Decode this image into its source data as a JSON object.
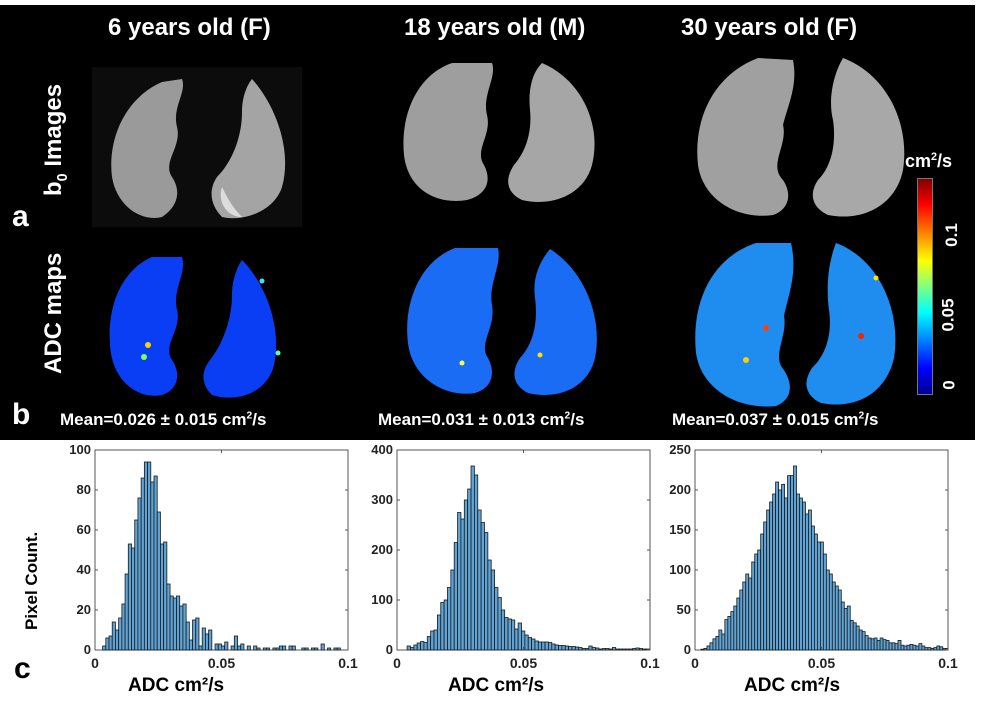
{
  "figure": {
    "panel_letters": [
      "a",
      "b",
      "c"
    ],
    "columns": [
      {
        "title": "6 years old (F)",
        "mean_label": "Mean=0.026 ± 0.015 cm",
        "mean_unit_sup": "2",
        "mean_unit_tail": "/s"
      },
      {
        "title": "18 years old (M)",
        "mean_label": "Mean=0.031 ± 0.013 cm",
        "mean_unit_sup": "2",
        "mean_unit_tail": "/s"
      },
      {
        "title": "30 years old (F)",
        "mean_label": "Mean=0.037 ± 0.015 cm",
        "mean_unit_sup": "2",
        "mean_unit_tail": "/s"
      }
    ],
    "row_labels": {
      "b0_main": "b",
      "b0_sub": "0",
      "b0_tail": " Images",
      "adc": "ADC maps"
    },
    "colorbar": {
      "unit_main": "cm",
      "unit_sup": "2",
      "unit_tail": "/s",
      "ticks": [
        "0",
        "0.05",
        "0.1"
      ],
      "colormap": "jet",
      "range": [
        0,
        0.135
      ]
    },
    "image_descriptions": {
      "b0": "grayscale lung MRI coronal slices",
      "adc": "jet-colored ADC maps of lungs"
    }
  },
  "chart_data": [
    {
      "type": "bar",
      "title": "6 years old (F)",
      "xlabel": "ADC cm²/s",
      "ylabel": "Pixel Count.",
      "xlim": [
        0,
        0.1
      ],
      "ylim": [
        0,
        100
      ],
      "xticks": [
        "0",
        "0.05",
        "0.1"
      ],
      "yticks": [
        "0",
        "20",
        "40",
        "60",
        "80",
        "100"
      ],
      "bin_start": 0.003,
      "bin_width": 0.00127,
      "values": [
        2,
        6,
        7,
        14,
        10,
        16,
        23,
        38,
        53,
        51,
        65,
        76,
        86,
        94,
        94,
        84,
        87,
        69,
        53,
        54,
        33,
        27,
        26,
        27,
        22,
        23,
        14,
        5,
        15,
        16,
        2,
        11,
        8,
        10,
        0,
        3,
        3,
        2,
        4,
        0,
        2,
        7,
        2,
        3,
        0,
        2,
        0,
        2,
        1,
        0,
        1,
        1,
        0,
        1,
        1,
        2,
        2,
        0,
        2,
        2,
        0,
        0,
        1,
        1,
        0,
        1,
        1,
        0,
        3,
        0,
        1,
        0,
        1,
        1
      ]
    },
    {
      "type": "bar",
      "title": "18 years old (M)",
      "xlabel": "ADC cm²/s",
      "ylabel": "",
      "xlim": [
        0,
        0.1
      ],
      "ylim": [
        0,
        400
      ],
      "xticks": [
        "0",
        "0.05",
        "0.1"
      ],
      "yticks": [
        "0",
        "100",
        "200",
        "300",
        "400"
      ],
      "bin_start": 0.0,
      "bin_width": 0.00133,
      "values": [
        0,
        0,
        0,
        8,
        5,
        10,
        14,
        17,
        15,
        27,
        38,
        40,
        70,
        95,
        100,
        125,
        160,
        215,
        275,
        262,
        300,
        322,
        368,
        350,
        280,
        255,
        235,
        180,
        160,
        125,
        105,
        80,
        65,
        62,
        60,
        42,
        54,
        38,
        30,
        25,
        22,
        18,
        16,
        16,
        16,
        15,
        12,
        10,
        9,
        9,
        8,
        7,
        7,
        6,
        5,
        3,
        3,
        8,
        5,
        4,
        2,
        3,
        3,
        2,
        5,
        2,
        2,
        2,
        2,
        2,
        3,
        4,
        3,
        2,
        2
      ]
    },
    {
      "type": "bar",
      "title": "30 years old (F)",
      "xlabel": "ADC cm²/s",
      "ylabel": "",
      "xlim": [
        0,
        0.1
      ],
      "ylim": [
        0,
        250
      ],
      "xticks": [
        "0",
        "0.05",
        "0.1"
      ],
      "yticks": [
        "0",
        "50",
        "100",
        "150",
        "200",
        "250"
      ],
      "bin_start": 0.0,
      "bin_width": 0.00118,
      "values": [
        0,
        0,
        1,
        2,
        5,
        9,
        14,
        17,
        25,
        20,
        38,
        42,
        48,
        55,
        65,
        75,
        85,
        95,
        90,
        110,
        120,
        125,
        145,
        160,
        175,
        185,
        195,
        210,
        200,
        207,
        190,
        218,
        218,
        230,
        195,
        190,
        185,
        170,
        175,
        155,
        145,
        135,
        135,
        120,
        100,
        95,
        85,
        80,
        75,
        60,
        52,
        55,
        37,
        34,
        30,
        25,
        23,
        18,
        15,
        14,
        15,
        12,
        15,
        13,
        12,
        9,
        9,
        8,
        12,
        6,
        5,
        6,
        7,
        6,
        5,
        8,
        5,
        3,
        3,
        2,
        3,
        5,
        4,
        2,
        2
      ]
    }
  ],
  "styles": {
    "bar_fill": "#5fa4d6",
    "bar_edge": "#1a1a1a",
    "tick_color": "#222222"
  }
}
